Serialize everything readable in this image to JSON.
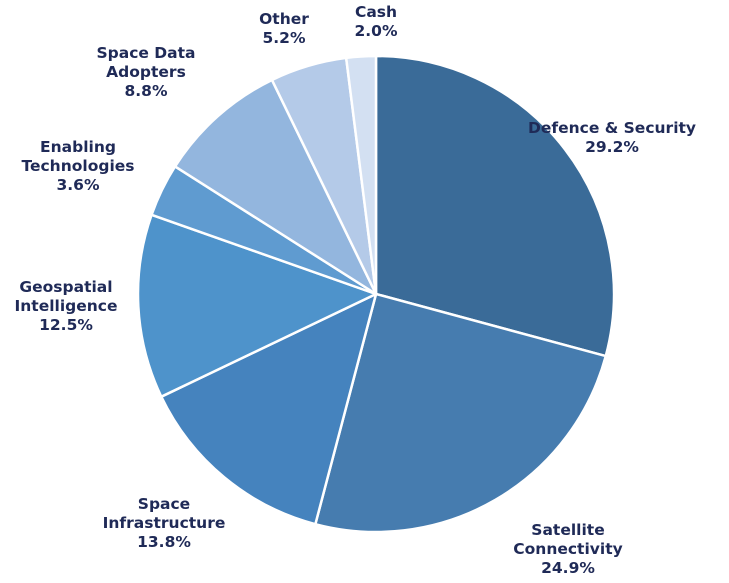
{
  "chart_data": {
    "type": "pie",
    "title": "",
    "unit": "%",
    "start_angle_deg": 0,
    "direction": "clockwise",
    "legend": "none",
    "slices": [
      {
        "label_lines": [
          "Defence & Security"
        ],
        "value": 29.2,
        "value_label": "29.2%",
        "color": "#3a6b98"
      },
      {
        "label_lines": [
          "Satellite",
          "Connectivity"
        ],
        "value": 24.9,
        "value_label": "24.9%",
        "color": "#467caf"
      },
      {
        "label_lines": [
          "Space",
          "Infrastructure"
        ],
        "value": 13.8,
        "value_label": "13.8%",
        "color": "#4583be"
      },
      {
        "label_lines": [
          "Geospatial",
          "Intelligence"
        ],
        "value": 12.5,
        "value_label": "12.5%",
        "color": "#4e93cb"
      },
      {
        "label_lines": [
          "Enabling",
          "Technologies"
        ],
        "value": 3.6,
        "value_label": "3.6%",
        "color": "#5f9bd0"
      },
      {
        "label_lines": [
          "Space Data",
          "Adopters"
        ],
        "value": 8.8,
        "value_label": "8.8%",
        "color": "#93b6de"
      },
      {
        "label_lines": [
          "Other"
        ],
        "value": 5.2,
        "value_label": "5.2%",
        "color": "#b4cae8"
      },
      {
        "label_lines": [
          "Cash"
        ],
        "value": 2.0,
        "value_label": "2.0%",
        "color": "#d3e0f2"
      }
    ]
  }
}
